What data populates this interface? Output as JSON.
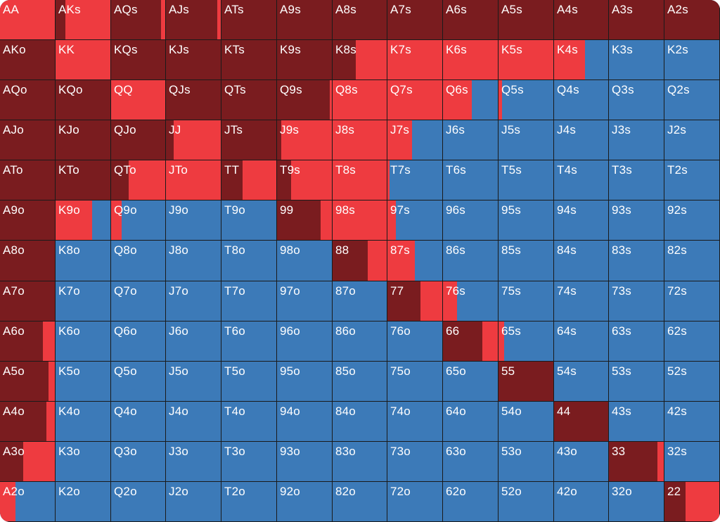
{
  "colors": {
    "raise": "#7a1c1f",
    "call": "#ee3b40",
    "fold": "#3c7ab8"
  },
  "hands": [
    [
      "AA",
      "AKs",
      "AQs",
      "AJs",
      "ATs",
      "A9s",
      "A8s",
      "A7s",
      "A6s",
      "A5s",
      "A4s",
      "A3s",
      "A2s"
    ],
    [
      "AKo",
      "KK",
      "KQs",
      "KJs",
      "KTs",
      "K9s",
      "K8s",
      "K7s",
      "K6s",
      "K5s",
      "K4s",
      "K3s",
      "K2s"
    ],
    [
      "AQo",
      "KQo",
      "QQ",
      "QJs",
      "QTs",
      "Q9s",
      "Q8s",
      "Q7s",
      "Q6s",
      "Q5s",
      "Q4s",
      "Q3s",
      "Q2s"
    ],
    [
      "AJo",
      "KJo",
      "QJo",
      "JJ",
      "JTs",
      "J9s",
      "J8s",
      "J7s",
      "J6s",
      "J5s",
      "J4s",
      "J3s",
      "J2s"
    ],
    [
      "ATo",
      "KTo",
      "QTo",
      "JTo",
      "TT",
      "T9s",
      "T8s",
      "T7s",
      "T6s",
      "T5s",
      "T4s",
      "T3s",
      "T2s"
    ],
    [
      "A9o",
      "K9o",
      "Q9o",
      "J9o",
      "T9o",
      "99",
      "98s",
      "97s",
      "96s",
      "95s",
      "94s",
      "93s",
      "92s"
    ],
    [
      "A8o",
      "K8o",
      "Q8o",
      "J8o",
      "T8o",
      "98o",
      "88",
      "87s",
      "86s",
      "85s",
      "84s",
      "83s",
      "82s"
    ],
    [
      "A7o",
      "K7o",
      "Q7o",
      "J7o",
      "T7o",
      "97o",
      "87o",
      "77",
      "76s",
      "75s",
      "74s",
      "73s",
      "72s"
    ],
    [
      "A6o",
      "K6o",
      "Q6o",
      "J6o",
      "T6o",
      "96o",
      "86o",
      "76o",
      "66",
      "65s",
      "64s",
      "63s",
      "62s"
    ],
    [
      "A5o",
      "K5o",
      "Q5o",
      "J5o",
      "T5o",
      "95o",
      "85o",
      "75o",
      "65o",
      "55",
      "54s",
      "53s",
      "52s"
    ],
    [
      "A4o",
      "K4o",
      "Q4o",
      "J4o",
      "T4o",
      "94o",
      "84o",
      "74o",
      "64o",
      "54o",
      "44",
      "43s",
      "42s"
    ],
    [
      "A3o",
      "K3o",
      "Q3o",
      "J3o",
      "T3o",
      "93o",
      "83o",
      "73o",
      "63o",
      "53o",
      "43o",
      "33",
      "32s"
    ],
    [
      "A2o",
      "K2o",
      "Q2o",
      "J2o",
      "T2o",
      "92o",
      "82o",
      "72o",
      "62o",
      "52o",
      "42o",
      "32o",
      "22"
    ]
  ],
  "frequencies": [
    [
      [
        0,
        1,
        0
      ],
      [
        0.18,
        0.82,
        0
      ],
      [
        0.92,
        0.08,
        0
      ],
      [
        0.93,
        0.07,
        0
      ],
      [
        1,
        0,
        0
      ],
      [
        1,
        0,
        0
      ],
      [
        1,
        0,
        0
      ],
      [
        1,
        0,
        0
      ],
      [
        1,
        0,
        0
      ],
      [
        1,
        0,
        0
      ],
      [
        1,
        0,
        0
      ],
      [
        1,
        0,
        0
      ],
      [
        1,
        0,
        0
      ]
    ],
    [
      [
        1,
        0,
        0
      ],
      [
        0,
        1,
        0
      ],
      [
        1,
        0,
        0
      ],
      [
        1,
        0,
        0
      ],
      [
        1,
        0,
        0
      ],
      [
        1,
        0,
        0
      ],
      [
        0.43,
        0.57,
        0
      ],
      [
        0,
        1,
        0
      ],
      [
        0,
        1,
        0
      ],
      [
        0,
        1,
        0
      ],
      [
        0,
        0.57,
        0.43
      ],
      [
        0,
        0,
        1
      ],
      [
        0,
        0,
        1
      ]
    ],
    [
      [
        1,
        0,
        0
      ],
      [
        1,
        0,
        0
      ],
      [
        0,
        1,
        0
      ],
      [
        1,
        0,
        0
      ],
      [
        1,
        0,
        0
      ],
      [
        0.96,
        0.04,
        0
      ],
      [
        0,
        1,
        0
      ],
      [
        0,
        1,
        0
      ],
      [
        0,
        0.53,
        0.47
      ],
      [
        0,
        0.06,
        0.94
      ],
      [
        0,
        0,
        1
      ],
      [
        0,
        0,
        1
      ],
      [
        0,
        0,
        1
      ]
    ],
    [
      [
        1,
        0,
        0
      ],
      [
        1,
        0,
        0
      ],
      [
        1,
        0,
        0
      ],
      [
        0.14,
        0.86,
        0
      ],
      [
        1,
        0,
        0
      ],
      [
        0.08,
        0.92,
        0
      ],
      [
        0,
        1,
        0
      ],
      [
        0,
        0.45,
        0.55
      ],
      [
        0,
        0,
        1
      ],
      [
        0,
        0,
        1
      ],
      [
        0,
        0,
        1
      ],
      [
        0,
        0,
        1
      ],
      [
        0,
        0,
        1
      ]
    ],
    [
      [
        1,
        0,
        0
      ],
      [
        1,
        0,
        0
      ],
      [
        0.33,
        0.67,
        0
      ],
      [
        0,
        1,
        0
      ],
      [
        0.38,
        0.62,
        0
      ],
      [
        0.26,
        0.74,
        0
      ],
      [
        0,
        1,
        0
      ],
      [
        0,
        0.04,
        0.96
      ],
      [
        0,
        0,
        1
      ],
      [
        0,
        0,
        1
      ],
      [
        0,
        0,
        1
      ],
      [
        0,
        0,
        1
      ],
      [
        0,
        0,
        1
      ]
    ],
    [
      [
        1,
        0,
        0
      ],
      [
        0,
        0.67,
        0.33
      ],
      [
        0,
        0.2,
        0.8
      ],
      [
        0,
        0,
        1
      ],
      [
        0,
        0,
        1
      ],
      [
        0.8,
        0.2,
        0
      ],
      [
        0,
        1,
        0
      ],
      [
        0,
        0.15,
        0.85
      ],
      [
        0,
        0,
        1
      ],
      [
        0,
        0,
        1
      ],
      [
        0,
        0,
        1
      ],
      [
        0,
        0,
        1
      ],
      [
        0,
        0,
        1
      ]
    ],
    [
      [
        1,
        0,
        0
      ],
      [
        0,
        0,
        1
      ],
      [
        0,
        0,
        1
      ],
      [
        0,
        0,
        1
      ],
      [
        0,
        0,
        1
      ],
      [
        0,
        0,
        1
      ],
      [
        0.65,
        0.35,
        0
      ],
      [
        0,
        0.5,
        0.5
      ],
      [
        0,
        0,
        1
      ],
      [
        0,
        0,
        1
      ],
      [
        0,
        0,
        1
      ],
      [
        0,
        0,
        1
      ],
      [
        0,
        0,
        1
      ]
    ],
    [
      [
        1,
        0,
        0
      ],
      [
        0,
        0,
        1
      ],
      [
        0,
        0,
        1
      ],
      [
        0,
        0,
        1
      ],
      [
        0,
        0,
        1
      ],
      [
        0,
        0,
        1
      ],
      [
        0,
        0,
        1
      ],
      [
        0.6,
        0.4,
        0
      ],
      [
        0,
        0.25,
        0.75
      ],
      [
        0,
        0,
        1
      ],
      [
        0,
        0,
        1
      ],
      [
        0,
        0,
        1
      ],
      [
        0,
        0,
        1
      ]
    ],
    [
      [
        0.78,
        0.22,
        0
      ],
      [
        0,
        0,
        1
      ],
      [
        0,
        0,
        1
      ],
      [
        0,
        0,
        1
      ],
      [
        0,
        0,
        1
      ],
      [
        0,
        0,
        1
      ],
      [
        0,
        0,
        1
      ],
      [
        0,
        0,
        1
      ],
      [
        0.72,
        0.28,
        0
      ],
      [
        0,
        0.1,
        0.9
      ],
      [
        0,
        0,
        1
      ],
      [
        0,
        0,
        1
      ],
      [
        0,
        0,
        1
      ]
    ],
    [
      [
        0.88,
        0.12,
        0
      ],
      [
        0,
        0,
        1
      ],
      [
        0,
        0,
        1
      ],
      [
        0,
        0,
        1
      ],
      [
        0,
        0,
        1
      ],
      [
        0,
        0,
        1
      ],
      [
        0,
        0,
        1
      ],
      [
        0,
        0,
        1
      ],
      [
        0,
        0,
        1
      ],
      [
        1,
        0,
        0
      ],
      [
        0,
        0,
        1
      ],
      [
        0,
        0,
        1
      ],
      [
        0,
        0,
        1
      ]
    ],
    [
      [
        0.85,
        0.15,
        0
      ],
      [
        0,
        0,
        1
      ],
      [
        0,
        0,
        1
      ],
      [
        0,
        0,
        1
      ],
      [
        0,
        0,
        1
      ],
      [
        0,
        0,
        1
      ],
      [
        0,
        0,
        1
      ],
      [
        0,
        0,
        1
      ],
      [
        0,
        0,
        1
      ],
      [
        0,
        0,
        1
      ],
      [
        1,
        0,
        0
      ],
      [
        0,
        0,
        1
      ],
      [
        0,
        0,
        1
      ]
    ],
    [
      [
        0.42,
        0.58,
        0
      ],
      [
        0,
        0,
        1
      ],
      [
        0,
        0,
        1
      ],
      [
        0,
        0,
        1
      ],
      [
        0,
        0,
        1
      ],
      [
        0,
        0,
        1
      ],
      [
        0,
        0,
        1
      ],
      [
        0,
        0,
        1
      ],
      [
        0,
        0,
        1
      ],
      [
        0,
        0,
        1
      ],
      [
        0,
        0,
        1
      ],
      [
        0.88,
        0.12,
        0
      ],
      [
        0,
        0,
        1
      ]
    ],
    [
      [
        0,
        0.28,
        0.72
      ],
      [
        0,
        0,
        1
      ],
      [
        0,
        0,
        1
      ],
      [
        0,
        0,
        1
      ],
      [
        0,
        0,
        1
      ],
      [
        0,
        0,
        1
      ],
      [
        0,
        0,
        1
      ],
      [
        0,
        0,
        1
      ],
      [
        0,
        0,
        1
      ],
      [
        0,
        0,
        1
      ],
      [
        0,
        0,
        1
      ],
      [
        0,
        0,
        1
      ],
      [
        0.38,
        0.62,
        0
      ]
    ]
  ]
}
